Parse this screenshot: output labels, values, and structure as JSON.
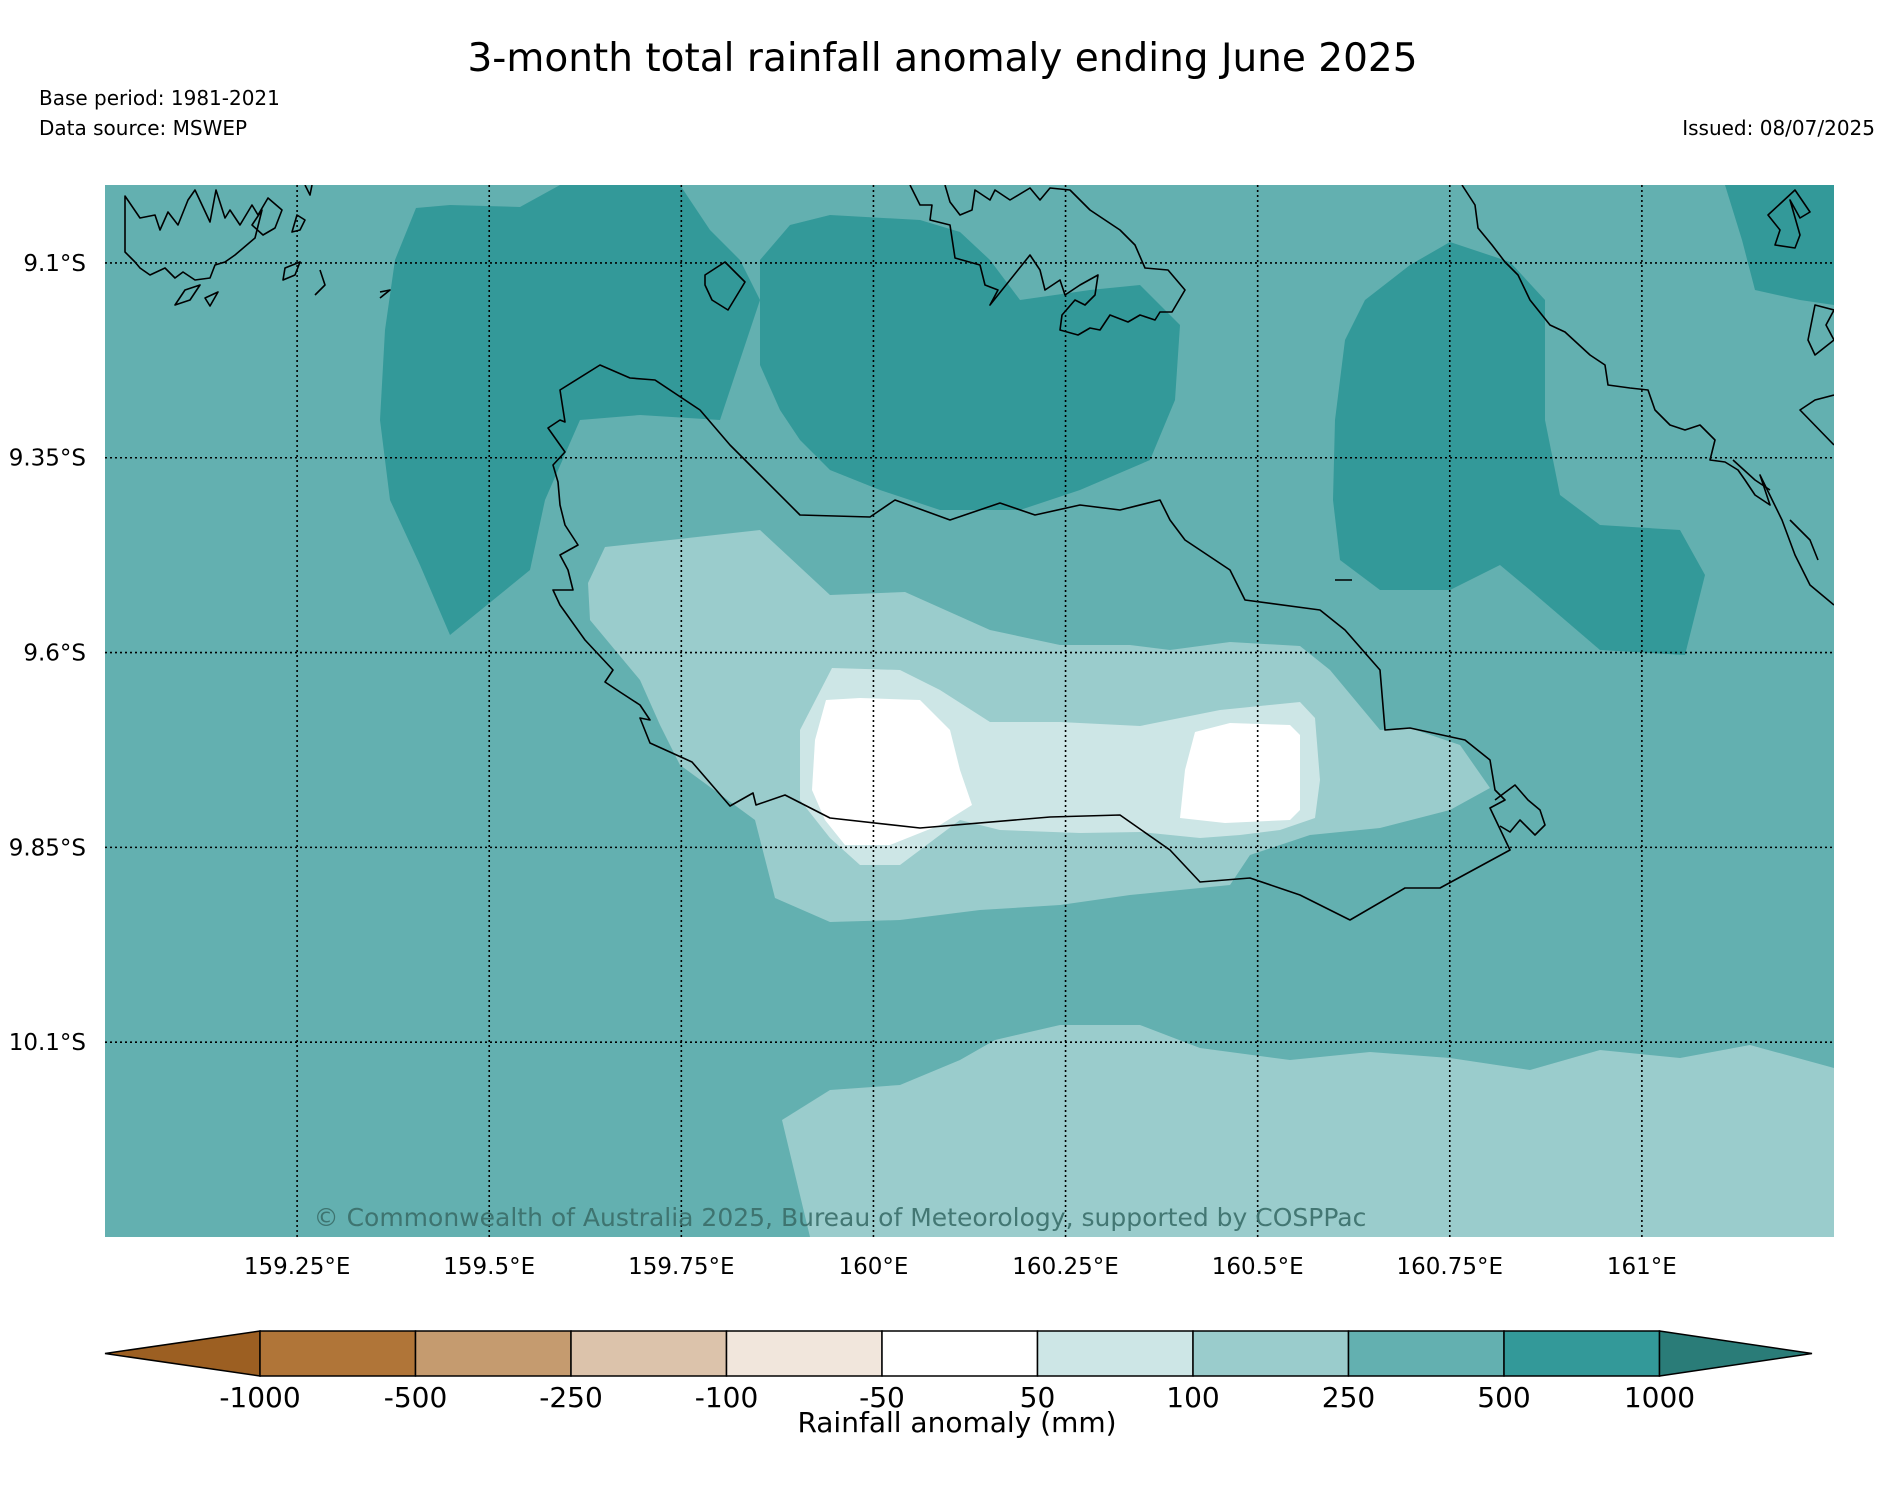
{
  "title": "3-month total rainfall anomaly ending June 2025",
  "base_period": "Base period: 1981-2021",
  "data_source": "Data source: MSWEP",
  "issued": "Issued: 08/07/2025",
  "copyright": "© Commonwealth of Australia 2025, Bureau of Meteorology, supported by COSPPac",
  "map": {
    "lon_range": [
      159.0,
      161.25
    ],
    "lat_range": [
      -10.35,
      -9.0
    ],
    "lon_ticks": [
      {
        "value": 159.25,
        "label": "159.25°E"
      },
      {
        "value": 159.5,
        "label": "159.5°E"
      },
      {
        "value": 159.75,
        "label": "159.75°E"
      },
      {
        "value": 160.0,
        "label": "160°E"
      },
      {
        "value": 160.25,
        "label": "160.25°E"
      },
      {
        "value": 160.5,
        "label": "160.5°E"
      },
      {
        "value": 160.75,
        "label": "160.75°E"
      },
      {
        "value": 161.0,
        "label": "161°E"
      }
    ],
    "lat_ticks": [
      {
        "value": -9.1,
        "label": "9.1°S"
      },
      {
        "value": -9.35,
        "label": "9.35°S"
      },
      {
        "value": -9.6,
        "label": "9.6°S"
      },
      {
        "value": -9.85,
        "label": "9.85°S"
      },
      {
        "value": -10.1,
        "label": "10.1°S"
      }
    ],
    "background_class": "250 to 500 mm"
  },
  "colorbar": {
    "label": "Rainfall anomaly (mm)",
    "boundaries": [
      "-1000",
      "-500",
      "-250",
      "-100",
      "-50",
      "50",
      "100",
      "250",
      "500",
      "1000"
    ],
    "colors": [
      "#9c5f22",
      "#b07538",
      "#c59b6f",
      "#dcc3ab",
      "#f1e6dc",
      "#ffffff",
      "#cde6e6",
      "#9acccc",
      "#63b0b0",
      "#339999",
      "#2a7c78"
    ]
  }
}
